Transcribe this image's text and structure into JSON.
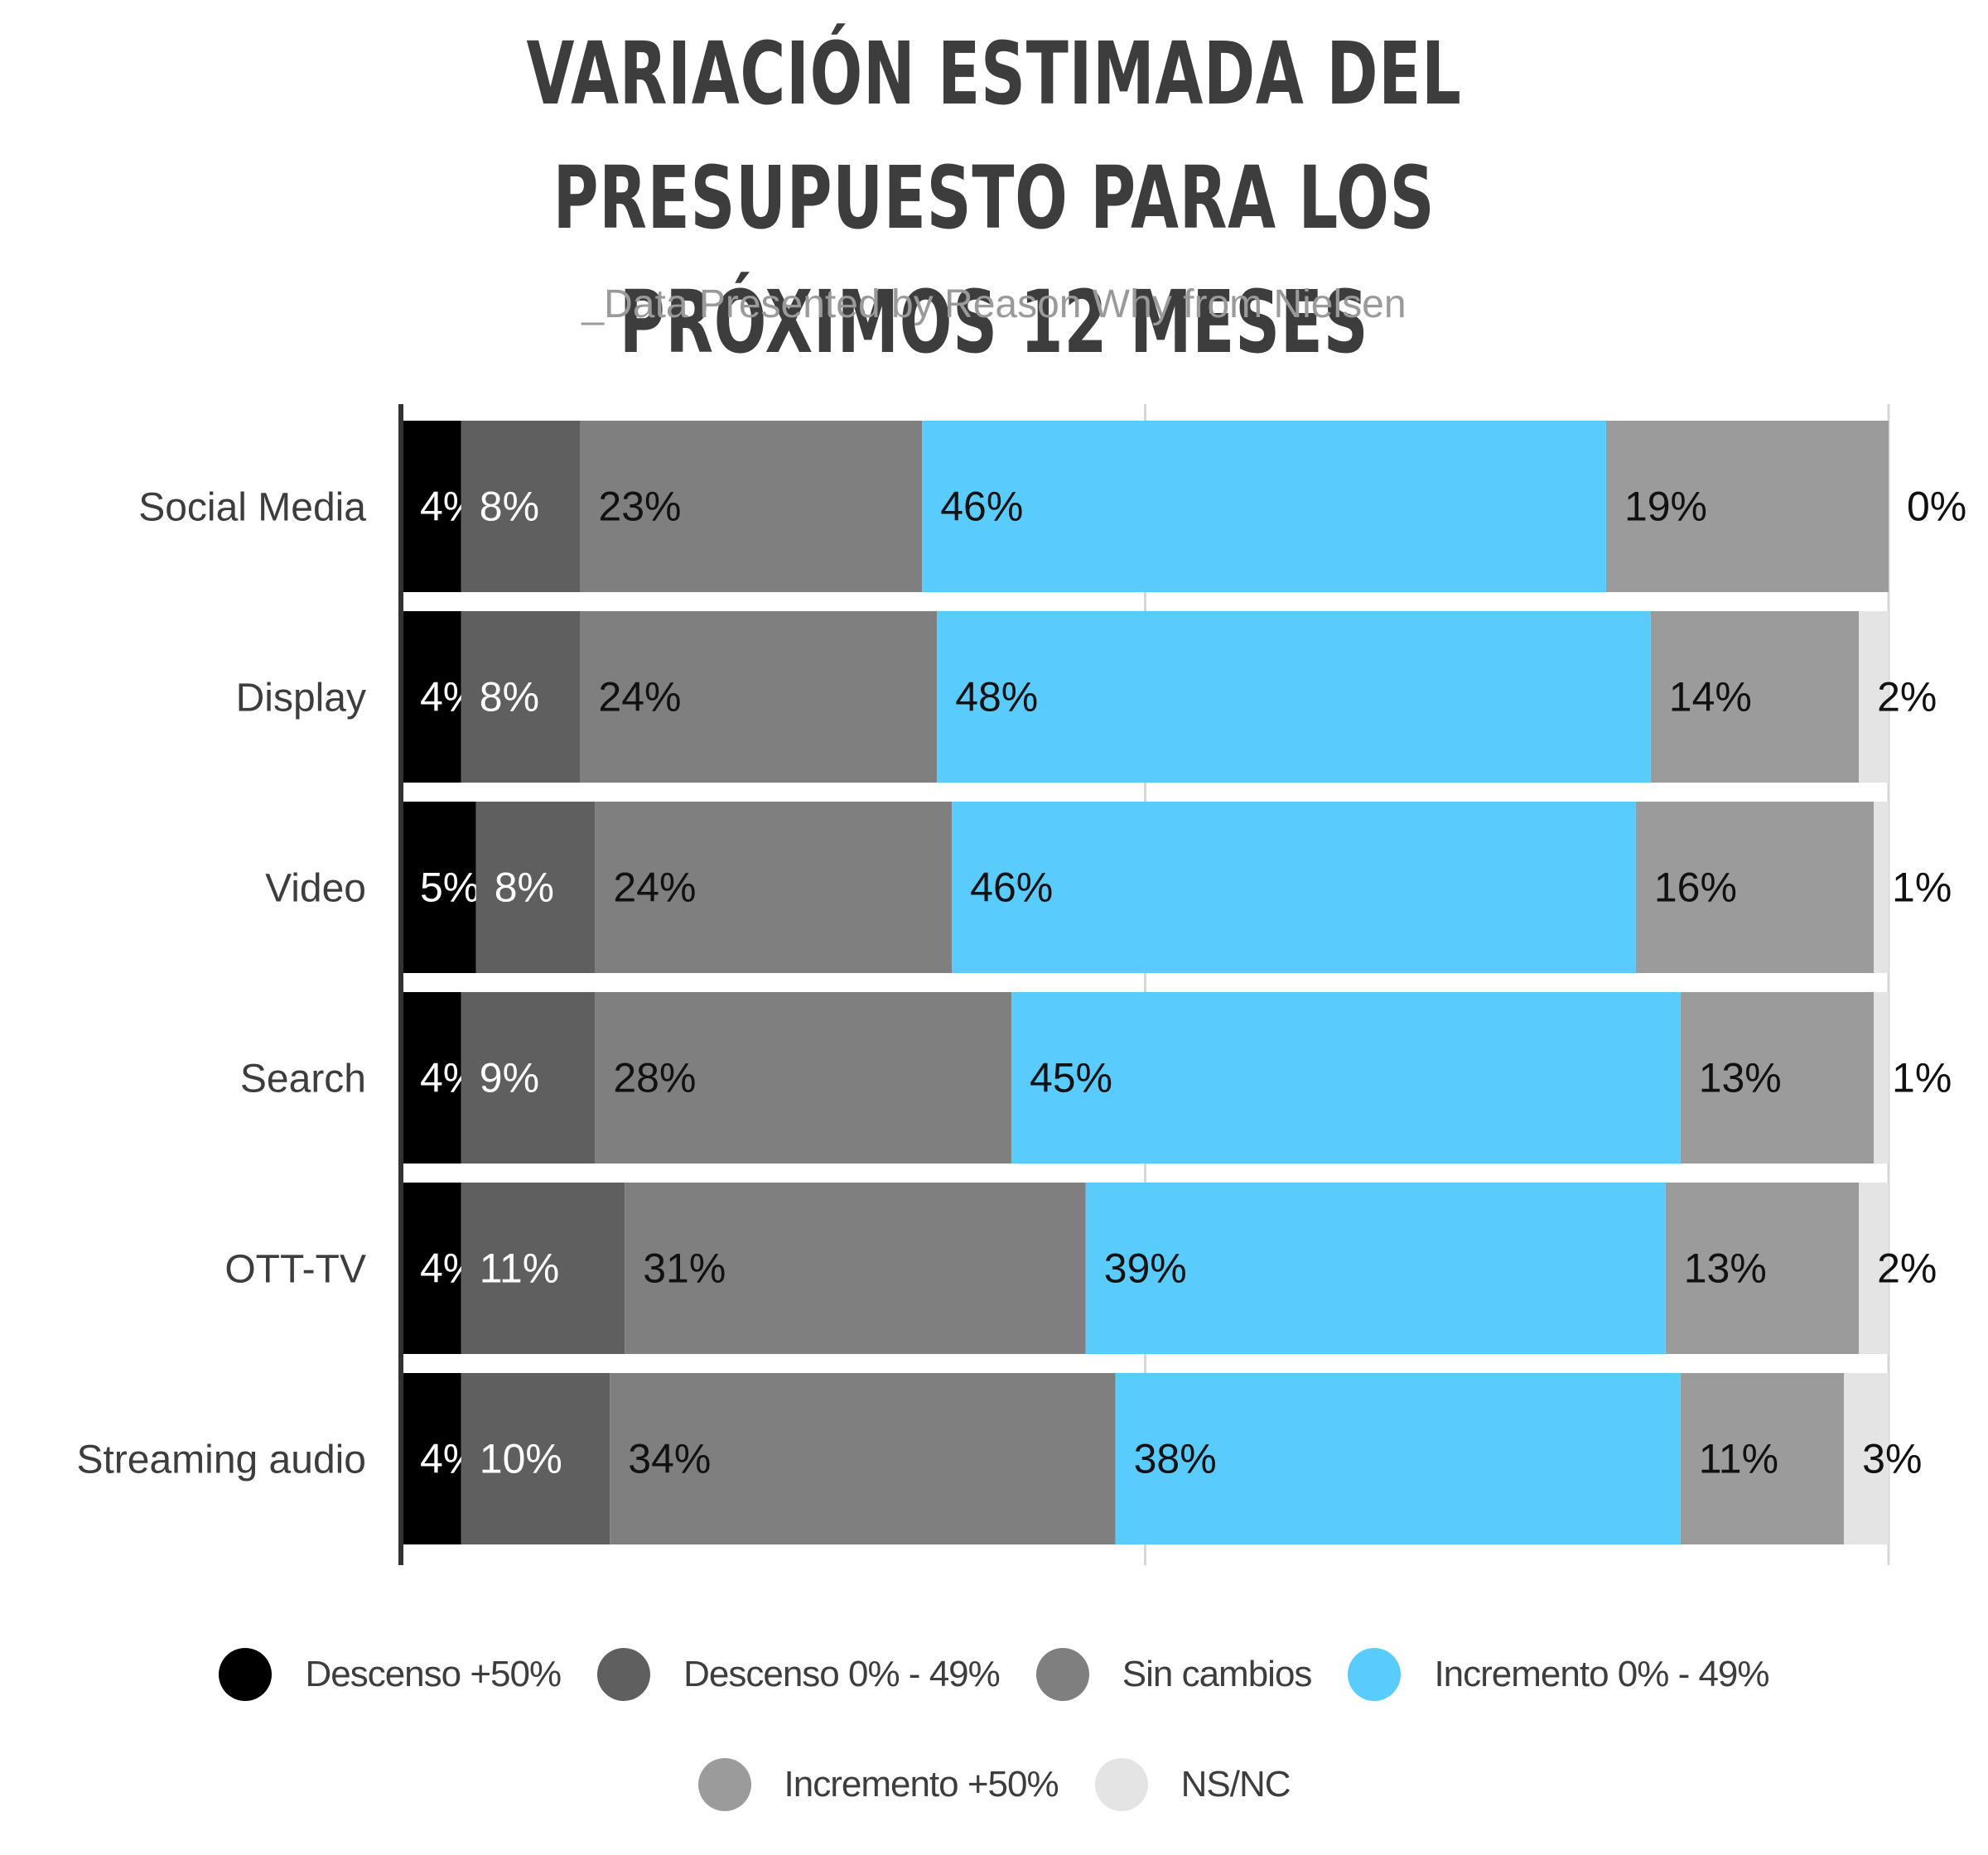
{
  "title": {
    "line1": "VARIACIÓN ESTIMADA DEL PRESUPUESTO PARA LOS",
    "line2": "PRÓXIMOS 12 MESES"
  },
  "subtitle": "_Data Presented by Reason Why from Nielsen",
  "chart_data": {
    "type": "bar",
    "orientation": "horizontal",
    "stacked": true,
    "title": "VARIACIÓN ESTIMADA DEL PRESUPUESTO PARA LOS PRÓXIMOS 12 MESES",
    "subtitle": "_Data Presented by Reason Why from Nielsen",
    "categories": [
      "Social Media",
      "Display",
      "Video",
      "Search",
      "OTT-TV",
      "Streaming audio"
    ],
    "xlim": [
      0,
      100
    ],
    "grid": true,
    "legend_position": "bottom",
    "series": [
      {
        "name": "Descenso +50%",
        "color": "#000000",
        "label_color": "#ffffff",
        "values": [
          4,
          4,
          5,
          4,
          4,
          4
        ]
      },
      {
        "name": "Descenso 0% - 49%",
        "color": "#5f5f5f",
        "label_color": "#ffffff",
        "values": [
          8,
          8,
          8,
          9,
          11,
          10
        ]
      },
      {
        "name": "Sin cambios",
        "color": "#7f7f7f",
        "label_color": "#111111",
        "values": [
          23,
          24,
          24,
          28,
          31,
          34
        ]
      },
      {
        "name": "Incremento 0% - 49%",
        "color": "#59cbfd",
        "label_color": "#111111",
        "values": [
          46,
          48,
          46,
          45,
          39,
          38
        ]
      },
      {
        "name": "Incremento +50%",
        "color": "#9b9b9b",
        "label_color": "#111111",
        "values": [
          19,
          14,
          16,
          13,
          13,
          11
        ]
      },
      {
        "name": "NS/NC",
        "color": "#e4e4e4",
        "label_color": "#111111",
        "values": [
          0,
          2,
          1,
          1,
          2,
          3
        ]
      }
    ],
    "value_labels": [
      [
        "4%",
        "8%",
        "23%",
        "46%",
        "19%",
        "0%"
      ],
      [
        "4%",
        "8%",
        "24%",
        "48%",
        "14%",
        "2%"
      ],
      [
        "5%",
        "8%",
        "24%",
        "46%",
        "16%",
        "1%"
      ],
      [
        "4%",
        "9%",
        "28%",
        "45%",
        "13%",
        "1%"
      ],
      [
        "4%",
        "11%",
        "31%",
        "39%",
        "13%",
        "2%"
      ],
      [
        "4%",
        "10%",
        "34%",
        "38%",
        "11%",
        "3%"
      ]
    ]
  }
}
